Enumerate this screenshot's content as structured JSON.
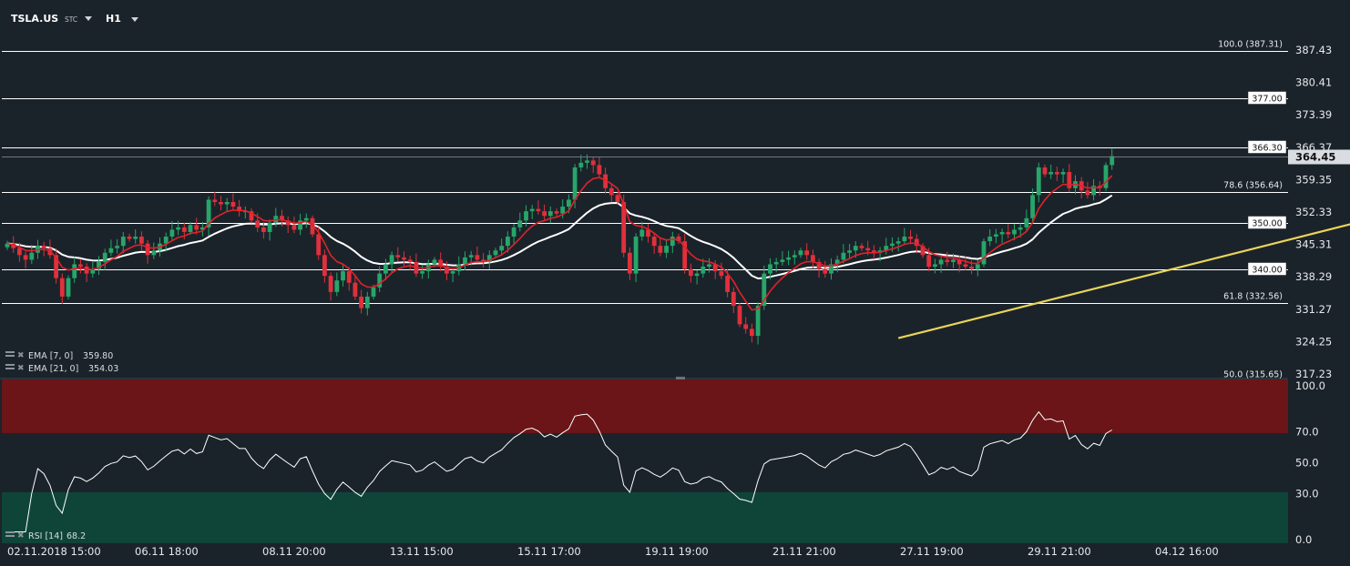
{
  "header": {
    "symbol": "TSLA.US",
    "type_label": "STC",
    "timeframe": "H1"
  },
  "legend": {
    "ema7": {
      "label": "EMA [7, 0]",
      "value": "359.80",
      "color": "#e0222a"
    },
    "ema21": {
      "label": "EMA [21, 0]",
      "value": "354.03",
      "color": "#ffffff"
    },
    "rsi": {
      "label": "RSI [14]",
      "value": "68.2"
    }
  },
  "colors": {
    "background": "#1b232a",
    "bull": "#26a66a",
    "bear": "#e0303c",
    "trendline": "#e8d55a",
    "overbought": "#6b1518",
    "oversold": "#0f4539",
    "text": "#e6e9ec"
  },
  "chart_data": [
    {
      "type": "candlestick",
      "title": "",
      "y_axis_ticks": [
        387.43,
        380.41,
        373.39,
        366.37,
        359.35,
        352.33,
        345.31,
        338.29,
        331.27,
        324.25,
        317.23
      ],
      "ylim": [
        317.23,
        387.43
      ],
      "last_price": "364.45",
      "x_tick_labels": [
        "02.11.2018 15:00",
        "06.11 18:00",
        "08.11 20:00",
        "13.11 15:00",
        "15.11 17:00",
        "19.11 19:00",
        "21.11 21:00",
        "27.11 19:00",
        "29.11 21:00",
        "04.12 16:00"
      ],
      "horizontal_levels": [
        {
          "value": 387.31,
          "label": "100.0 (387.31)",
          "boxed": false
        },
        {
          "value": 377.0,
          "label": "377.00",
          "boxed": true
        },
        {
          "value": 366.3,
          "label": "366.30",
          "boxed": true
        },
        {
          "value": 356.64,
          "label": "78.6 (356.64)",
          "boxed": false
        },
        {
          "value": 350.0,
          "label": "350.00",
          "boxed": true
        },
        {
          "value": 340.0,
          "label": "340.00",
          "boxed": true
        },
        {
          "value": 332.56,
          "label": "61.8 (332.56)",
          "boxed": false
        },
        {
          "value": 315.65,
          "label": "50.0 (315.65)",
          "boxed": false
        }
      ],
      "trendline": {
        "from": [
          146,
          325.0
        ],
        "to": [
          230,
          353.0
        ]
      },
      "close": [
        345.5,
        344.5,
        343.0,
        342.0,
        343.5,
        345.0,
        344.5,
        343.0,
        338.0,
        334.0,
        338.0,
        341.0,
        340.5,
        339.0,
        340.0,
        341.5,
        343.5,
        344.5,
        345.0,
        347.0,
        346.5,
        347.0,
        345.5,
        343.0,
        344.0,
        345.5,
        347.0,
        348.5,
        349.0,
        348.0,
        349.5,
        348.5,
        349.0,
        355.0,
        354.5,
        354.0,
        354.5,
        353.5,
        352.5,
        352.5,
        350.5,
        349.0,
        348.0,
        350.0,
        351.5,
        350.5,
        349.5,
        348.5,
        350.5,
        351.0,
        347.5,
        343.0,
        338.5,
        335.0,
        337.5,
        339.5,
        337.0,
        334.0,
        331.5,
        334.0,
        336.0,
        339.0,
        341.0,
        343.0,
        342.5,
        342.0,
        341.5,
        339.0,
        339.5,
        341.0,
        342.0,
        340.5,
        339.0,
        339.5,
        341.0,
        342.5,
        343.0,
        342.0,
        341.5,
        343.0,
        344.0,
        345.0,
        347.0,
        349.0,
        350.5,
        352.5,
        353.0,
        352.5,
        351.5,
        352.5,
        352.0,
        353.5,
        355.0,
        362.0,
        363.0,
        363.5,
        362.5,
        360.5,
        357.5,
        356.0,
        354.5,
        343.5,
        339.0,
        347.0,
        348.5,
        347.0,
        345.0,
        343.5,
        345.0,
        347.0,
        346.0,
        340.0,
        338.5,
        339.0,
        340.5,
        341.0,
        339.5,
        338.5,
        335.0,
        332.0,
        328.0,
        327.0,
        325.5,
        332.0,
        339.0,
        341.0,
        341.5,
        342.0,
        342.5,
        343.0,
        344.0,
        343.0,
        341.5,
        340.0,
        339.0,
        341.0,
        342.0,
        343.5,
        344.0,
        345.0,
        344.5,
        344.0,
        343.5,
        344.0,
        345.0,
        345.5,
        346.0,
        347.0,
        346.5,
        345.0,
        343.0,
        340.5,
        341.0,
        342.0,
        341.5,
        342.0,
        341.0,
        340.5,
        340.0,
        341.0,
        346.0,
        347.0,
        347.5,
        348.0,
        347.5,
        348.5,
        349.0,
        351.0,
        356.0,
        362.0,
        360.5,
        361.0,
        360.5,
        361.0,
        357.5,
        359.0,
        357.0,
        356.0,
        358.0,
        357.5,
        362.5,
        364.45
      ],
      "ema7_last": 359.8,
      "ema21_last": 354.03
    },
    {
      "type": "line",
      "title": "",
      "y_axis_ticks": [
        100.0,
        70.0,
        50.0,
        30.0,
        0.0
      ],
      "ylim": [
        0,
        100
      ],
      "overbought": 70,
      "oversold": 30
    }
  ]
}
